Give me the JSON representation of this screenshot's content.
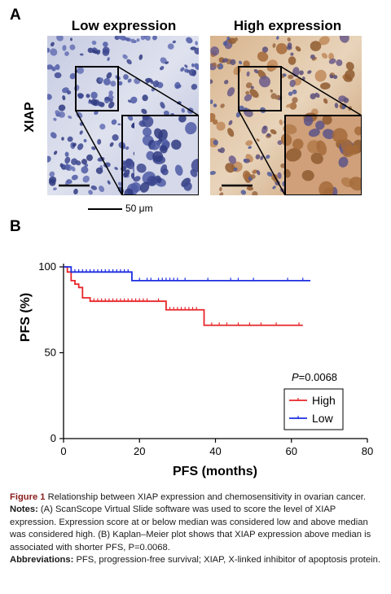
{
  "panel_a": {
    "letter": "A",
    "col_low": "Low expression",
    "col_high": "High expression",
    "row_label": "XIAP",
    "scale_label": "50 μm"
  },
  "panel_b": {
    "letter": "B",
    "p_prefix": "P",
    "p_value": "=0.0068"
  },
  "chart_data": {
    "type": "line",
    "xlabel": "PFS (months)",
    "ylabel": "PFS (%)",
    "xlim": [
      0,
      80
    ],
    "ylim": [
      0,
      100
    ],
    "x_ticks": [
      "0",
      "20",
      "40",
      "60",
      "80"
    ],
    "y_ticks": [
      "0",
      "50",
      "100"
    ],
    "legend_position": "bottom-right",
    "series": [
      {
        "name": "High",
        "color": "#e8262a",
        "steps": [
          [
            0,
            100
          ],
          [
            1,
            97
          ],
          [
            2,
            92
          ],
          [
            3,
            90
          ],
          [
            4,
            88
          ],
          [
            5,
            82
          ],
          [
            7,
            80
          ],
          [
            27,
            75
          ],
          [
            37,
            66
          ],
          [
            63,
            66
          ]
        ],
        "censor_x": [
          8,
          9,
          10,
          11,
          12,
          13,
          14,
          15,
          16,
          17,
          18,
          19,
          20,
          21,
          22,
          25,
          28,
          29,
          30,
          31,
          32,
          33,
          34,
          35,
          39,
          41,
          43,
          46,
          49,
          52,
          56,
          62
        ]
      },
      {
        "name": "Low",
        "color": "#1c2ee0",
        "steps": [
          [
            0,
            100
          ],
          [
            2,
            97
          ],
          [
            18,
            92
          ],
          [
            65,
            92
          ]
        ],
        "censor_x": [
          3,
          4,
          5,
          6,
          7,
          8,
          9,
          10,
          11,
          12,
          13,
          14,
          15,
          16,
          17,
          20,
          22,
          23,
          25,
          26,
          27,
          28,
          29,
          30,
          32,
          38,
          44,
          46,
          50,
          59,
          63
        ]
      }
    ]
  },
  "caption": {
    "fig_label": "Figure 1",
    "fig_title": "Relationship between XIAP expression and chemosensitivity in ovarian cancer.",
    "notes_label": "Notes:",
    "notes_text_1": "(A) ScanScope Virtual Slide software was used to score the level of XIAP expression. Expression score at or below median was considered low and above median was considered high. (B) Kaplan–Meier plot shows that XIAP expression above median is associated with shorter PFS, P=0.0068.",
    "abbr_label": "Abbreviations:",
    "abbr_text": "PFS, progression-free survival; XIAP, X-linked inhibitor of apoptosis protein."
  },
  "colors": {
    "low_stain": "#5a64a6",
    "high_stain": "#b27a4a",
    "caption_title": "#8a1c1c"
  }
}
